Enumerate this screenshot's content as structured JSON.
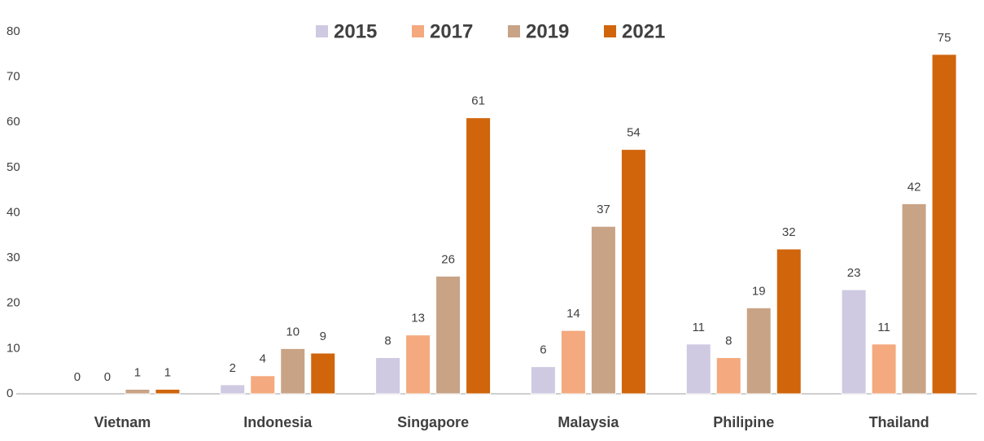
{
  "chart_data": {
    "type": "bar",
    "categories": [
      "Vietnam",
      "Indonesia",
      "Singapore",
      "Malaysia",
      "Philipine",
      "Thailand"
    ],
    "series": [
      {
        "name": "2015",
        "color": "#cfc9e2",
        "values": [
          0,
          2,
          8,
          6,
          11,
          23
        ]
      },
      {
        "name": "2017",
        "color": "#f4a97e",
        "values": [
          0,
          4,
          13,
          14,
          8,
          11
        ]
      },
      {
        "name": "2019",
        "color": "#c8a385",
        "values": [
          1,
          10,
          26,
          37,
          19,
          42
        ]
      },
      {
        "name": "2021",
        "color": "#d0650c",
        "values": [
          1,
          9,
          61,
          54,
          32,
          75
        ]
      }
    ],
    "ylim": [
      0,
      80
    ],
    "yticks": [
      0,
      10,
      20,
      30,
      40,
      50,
      60,
      70,
      80
    ],
    "grid": false,
    "legend": "top"
  }
}
